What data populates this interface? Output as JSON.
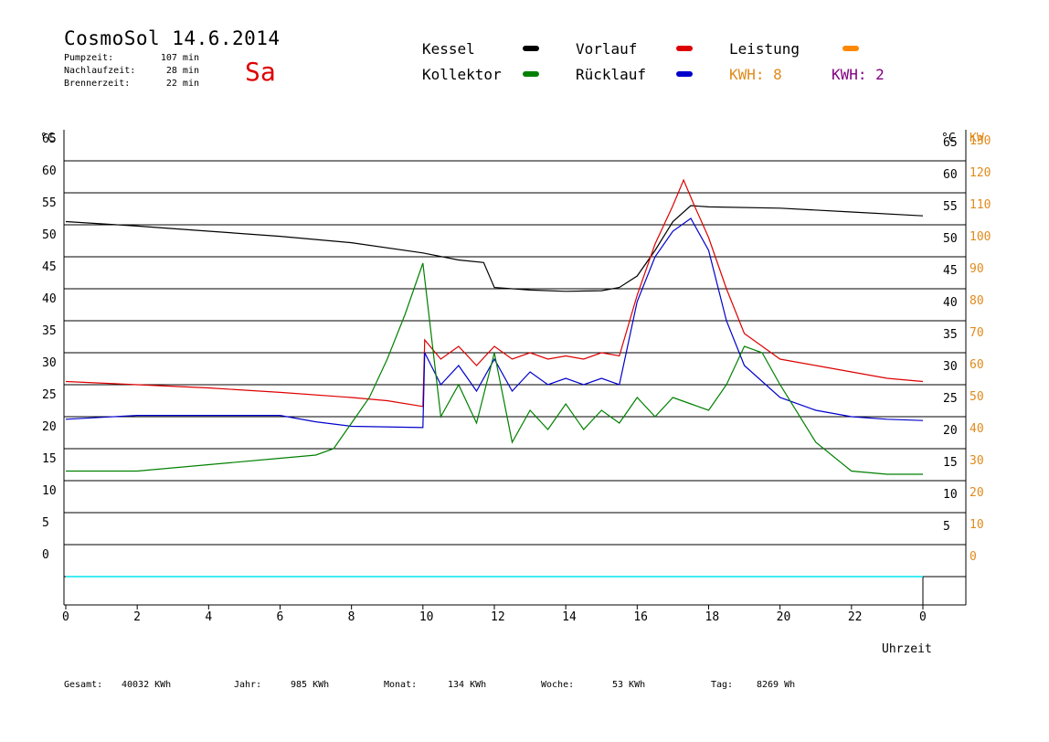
{
  "header": {
    "title": "CosmoSol 14.6.2014",
    "weekday": "Sa",
    "stats": [
      {
        "label": "Pumpzeit:",
        "value": "107 min"
      },
      {
        "label": "Nachlaufzeit:",
        "value": "28 min"
      },
      {
        "label": "Brennerzeit:",
        "value": "22 min"
      }
    ]
  },
  "legend": {
    "items": [
      {
        "label": "Kessel",
        "color": "#000000"
      },
      {
        "label": "Vorlauf",
        "color": "#dd0000"
      },
      {
        "label": "Leistung",
        "color": "#ff8800"
      },
      {
        "label": "Kollektor",
        "color": "#008000"
      },
      {
        "label": "Rücklauf",
        "color": "#0000cc"
      }
    ],
    "kwh1": "KWH: 8",
    "kwh1_color": "#e08a1c",
    "kwh2": "KWH: 2",
    "kwh2_color": "#800080"
  },
  "footer": {
    "gesamt_label": "Gesamt:",
    "gesamt_value": "40032 KWh",
    "jahr_label": "Jahr:",
    "jahr_value": "985 KWh",
    "monat_label": "Monat:",
    "monat_value": "134 KWh",
    "woche_label": "Woche:",
    "woche_value": "53 KWh",
    "tag_label": "Tag:",
    "tag_value": "8269 Wh"
  },
  "chart_data": {
    "type": "line",
    "xlabel": "Uhrzeit",
    "x_ticks": [
      "0",
      "2",
      "4",
      "6",
      "8",
      "10",
      "12",
      "14",
      "16",
      "18",
      "20",
      "22",
      "0"
    ],
    "y_left_label": "°C",
    "y_left_ticks": [
      "65",
      "60",
      "55",
      "50",
      "45",
      "40",
      "35",
      "30",
      "25",
      "20",
      "15",
      "10",
      "5",
      "0"
    ],
    "y_right_unit_c": "°C",
    "y_right_unit_kw": "KW",
    "y_right_c_ticks": [
      "65",
      "60",
      "55",
      "50",
      "45",
      "40",
      "35",
      "30",
      "25",
      "20",
      "15",
      "10",
      "5"
    ],
    "y_right_kw_ticks": [
      "130",
      "120",
      "110",
      "100",
      "90",
      "80",
      "70",
      "60",
      "50",
      "40",
      "30",
      "20",
      "10",
      "0"
    ],
    "xlim": [
      0,
      24
    ],
    "ylim": [
      -5,
      70
    ],
    "grid": true,
    "series": [
      {
        "name": "Kessel",
        "color": "#000000",
        "x": [
          0,
          2,
          4,
          6,
          8,
          10,
          11,
          11.7,
          12,
          13,
          14,
          15,
          15.5,
          16,
          16.5,
          17,
          17.5,
          18,
          20,
          22,
          24
        ],
        "y": [
          55.5,
          54.8,
          54,
          53.2,
          52.2,
          50.6,
          49.5,
          49.1,
          45.2,
          44.8,
          44.6,
          44.7,
          45.2,
          47,
          51,
          55.5,
          58,
          57.8,
          57.6,
          57,
          56.4
        ]
      },
      {
        "name": "Vorlauf",
        "color": "#dd0000",
        "x": [
          0,
          2,
          4,
          6,
          8,
          9,
          10,
          10.05,
          10.5,
          11,
          11.5,
          12,
          12.5,
          13,
          13.5,
          14,
          14.5,
          15,
          15.5,
          16,
          16.5,
          17,
          17.3,
          17.6,
          18,
          18.5,
          19,
          20,
          21,
          22,
          23,
          24
        ],
        "y": [
          30.5,
          30,
          29.5,
          28.8,
          28,
          27.5,
          26.6,
          37,
          34,
          36,
          33,
          36,
          34,
          35,
          34,
          34.5,
          34,
          35,
          34.5,
          44,
          52,
          58,
          62,
          58,
          53,
          45,
          38,
          34,
          33,
          32,
          31,
          30.5
        ]
      },
      {
        "name": "Rücklauf",
        "color": "#0000cc",
        "x": [
          0,
          2,
          4,
          6,
          7,
          8,
          10,
          10.05,
          10.5,
          11,
          11.5,
          12,
          12.5,
          13,
          13.5,
          14,
          14.5,
          15,
          15.5,
          16,
          16.5,
          17,
          17.5,
          18,
          18.5,
          19,
          20,
          21,
          22,
          23,
          24
        ],
        "y": [
          24.6,
          25.2,
          25.2,
          25.2,
          24.2,
          23.5,
          23.3,
          35,
          30,
          33,
          29,
          34,
          29,
          32,
          30,
          31,
          30,
          31,
          30,
          43,
          50,
          54,
          56,
          51,
          40,
          33,
          28,
          26,
          25,
          24.6,
          24.4
        ]
      },
      {
        "name": "Kollektor",
        "color": "#008000",
        "x": [
          0,
          2,
          4,
          6,
          7,
          7.5,
          8,
          8.5,
          9,
          9.5,
          10,
          10.5,
          11,
          11.5,
          12,
          12.5,
          13,
          13.5,
          14,
          14.5,
          15,
          15.5,
          16,
          16.5,
          17,
          17.5,
          18,
          18.5,
          19,
          19.5,
          20,
          21,
          22,
          23,
          24
        ],
        "y": [
          16.5,
          16.5,
          17.5,
          18.5,
          19,
          20,
          24,
          28,
          34,
          41,
          49,
          25,
          30,
          24,
          35,
          21,
          26,
          23,
          27,
          23,
          26,
          24,
          28,
          25,
          28,
          27,
          26,
          30,
          36,
          35,
          30,
          21,
          16.5,
          16,
          16
        ]
      }
    ]
  }
}
